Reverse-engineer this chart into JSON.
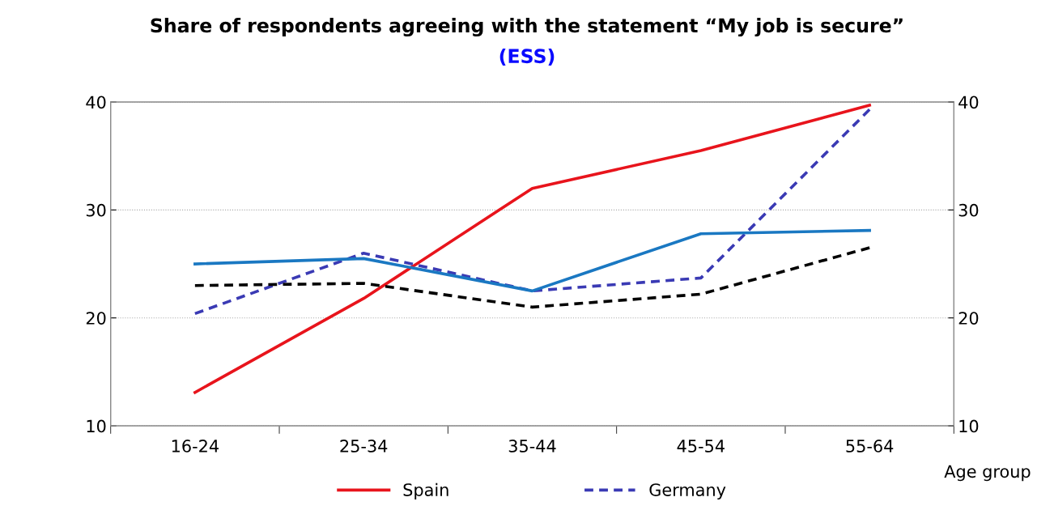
{
  "chart_data": {
    "type": "line",
    "title": "Share of respondents agreeing with the statement “My job is secure”",
    "subtitle": "(ESS)",
    "xlabel": "Age group",
    "categories": [
      "16-24",
      "25-34",
      "35-44",
      "45-54",
      "55-64"
    ],
    "series": [
      {
        "name": "Spain",
        "color": "#e8141c",
        "line_style": "solid",
        "values": [
          13.1,
          21.8,
          32.0,
          35.5,
          39.7
        ]
      },
      {
        "name": "Germany",
        "color": "#3a3ab4",
        "line_style": "dashed",
        "values": [
          20.4,
          26.0,
          22.5,
          23.7,
          39.3
        ]
      },
      {
        "color": "#1a78c2",
        "line_style": "solid",
        "values": [
          25.0,
          25.5,
          22.5,
          27.8,
          28.1
        ]
      },
      {
        "color": "#000000",
        "line_style": "dashed",
        "values": [
          23.0,
          23.2,
          21.0,
          22.2,
          26.5
        ]
      }
    ],
    "ylim": [
      10,
      40
    ],
    "yticks": [
      10,
      20,
      30,
      40
    ],
    "y2lim": [
      10,
      40
    ],
    "y2ticks": [
      10,
      20,
      30,
      40
    ],
    "grid": "y",
    "legend": "bottom",
    "marker": "none"
  }
}
